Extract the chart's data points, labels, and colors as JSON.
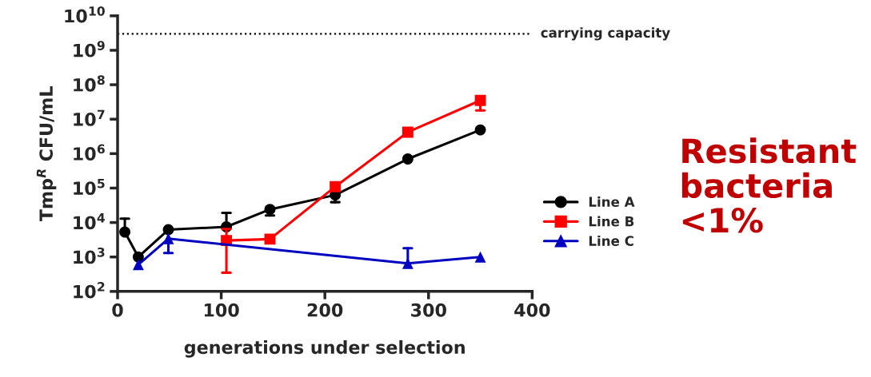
{
  "chart_data": {
    "type": "line",
    "xlabel": "generations under selection",
    "ylabel": "Tmp$^{R}$ CFU/mL",
    "log": "y",
    "xlim": [
      0,
      400
    ],
    "xticks": [
      0,
      100,
      200,
      300,
      400
    ],
    "ylim": [
      100,
      10000000000
    ],
    "yticks": [
      {
        "value": 100,
        "label": "10$^{2}$"
      },
      {
        "value": 1000,
        "label": "10$^{3}$"
      },
      {
        "value": 10000,
        "label": "10$^{4}$"
      },
      {
        "value": 100000,
        "label": "10$^{5}$"
      },
      {
        "value": 1000000,
        "label": "10$^{6}$"
      },
      {
        "value": 10000000,
        "label": "10$^{7}$"
      },
      {
        "value": 100000000,
        "label": "10$^{8}$"
      },
      {
        "value": 1000000000,
        "label": "10$^{9}$"
      },
      {
        "value": 10000000000,
        "label": "10$^{10}$"
      }
    ],
    "grid": false,
    "legend": "right",
    "series": [
      {
        "name": "Line A",
        "color": "#000000",
        "marker": "circle",
        "x": [
          7,
          20,
          49,
          105,
          147,
          210,
          280,
          350
        ],
        "values": [
          5300,
          1000,
          6200,
          7500,
          24000,
          63000,
          700000,
          4900000
        ],
        "errors": [
          [
            5300,
            13000
          ],
          null,
          null,
          [
            7500,
            19000
          ],
          [
            16000,
            24000
          ],
          [
            39000,
            63000
          ],
          null,
          null
        ]
      },
      {
        "name": "Line B",
        "color": "#ff0000",
        "marker": "square",
        "x": [
          105,
          147,
          210,
          280,
          350
        ],
        "values": [
          3000,
          3300,
          110000,
          4200000,
          35000000
        ],
        "errors": [
          [
            350,
            6500
          ],
          null,
          null,
          null,
          [
            18000000,
            35000000
          ]
        ]
      },
      {
        "name": "Line C",
        "color": "#0000c0",
        "marker": "triangle",
        "x": [
          20,
          49,
          280,
          350
        ],
        "values": [
          600,
          3400,
          650,
          1000
        ],
        "errors": [
          null,
          [
            1300,
            3400
          ],
          [
            650,
            1800
          ],
          null
        ]
      }
    ],
    "ref_lines": [
      {
        "axis": "y",
        "value": 3000000000,
        "label": "carrying capacity",
        "color": "#000000",
        "line_style": "dotted"
      }
    ],
    "annotations": [
      "Resistant\nbacteria\n<1%"
    ]
  }
}
